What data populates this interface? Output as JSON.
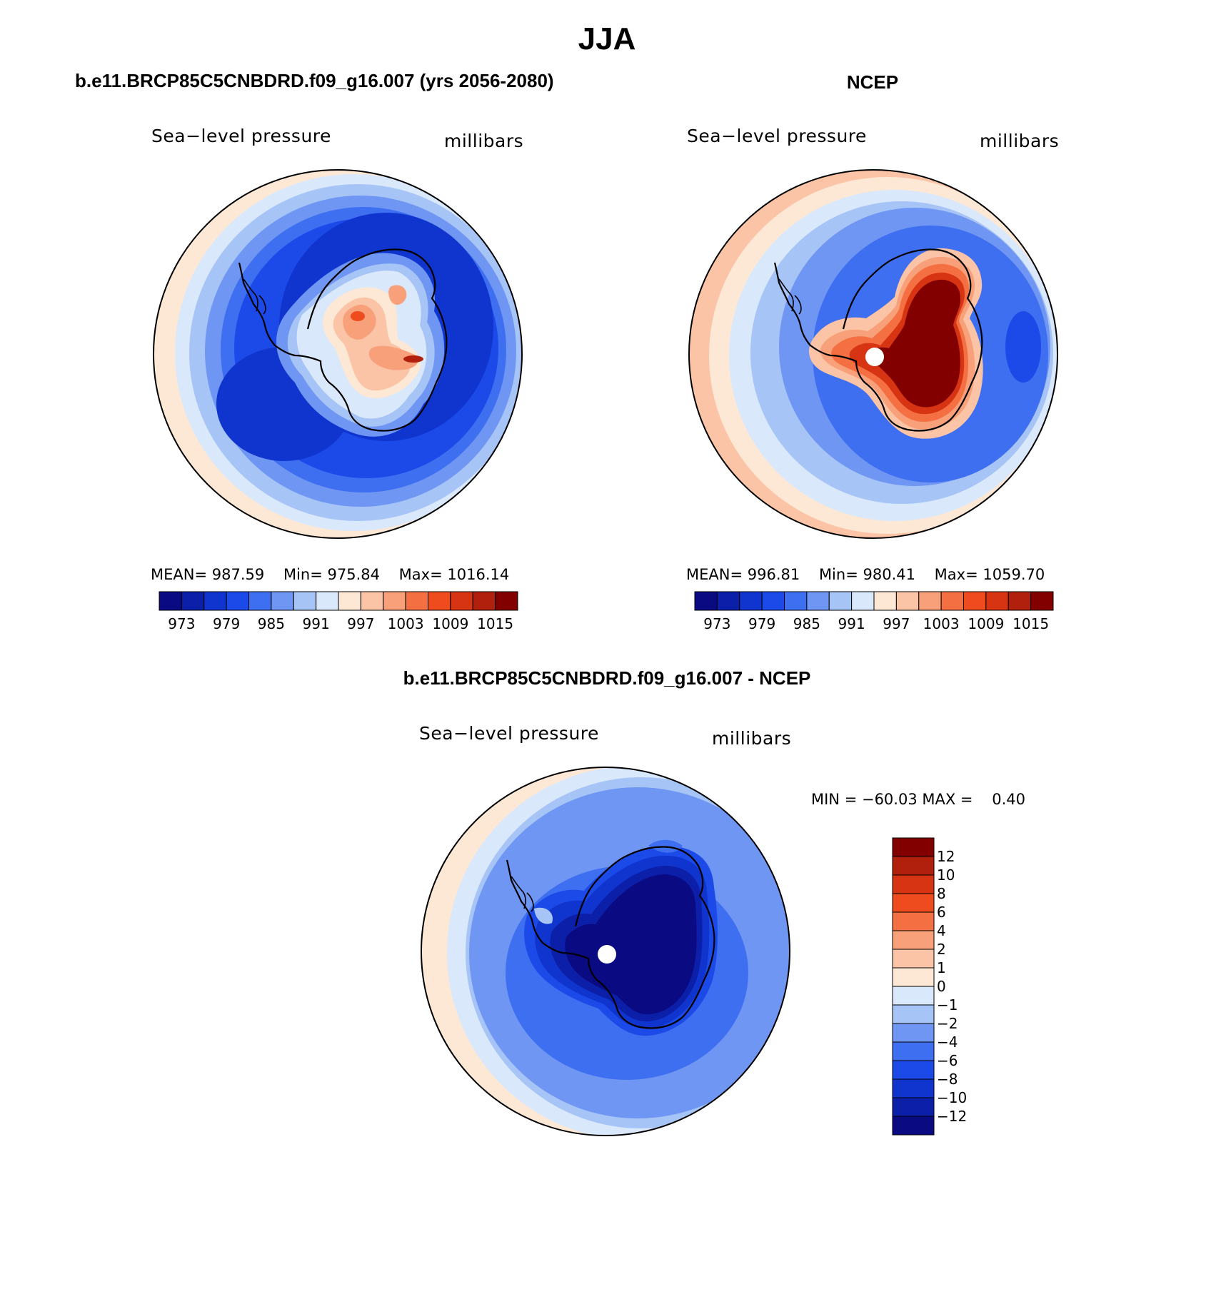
{
  "figure": {
    "season": "JJA",
    "panel_left": {
      "title": "b.e11.BRCP85C5CNBDRD.f09_g16.007 (yrs 2056-2080)",
      "variable": "Sea−level pressure",
      "units": "millibars",
      "mean_label": "MEAN=",
      "mean": "987.59",
      "min_label": "Min=",
      "min": "975.84",
      "max_label": "Max=",
      "max": "1016.14"
    },
    "panel_right": {
      "title": "NCEP",
      "variable": "Sea−level pressure",
      "units": "millibars",
      "mean_label": "MEAN=",
      "mean": "996.81",
      "min_label": "Min=",
      "min": "980.41",
      "max_label": "Max=",
      "max": "1059.70"
    },
    "panel_diff": {
      "title": "b.e11.BRCP85C5CNBDRD.f09_g16.007 - NCEP",
      "variable": "Sea−level pressure",
      "units": "millibars",
      "minmax_text": "MIN = −60.03 MAX =",
      "max_value": "0.40"
    }
  },
  "colorbar_abs": {
    "colors": [
      "#0a0a82",
      "#0c1fa8",
      "#1035cf",
      "#1c4ae8",
      "#3e6ff0",
      "#6f96f2",
      "#a7c4f7",
      "#d9e8fb",
      "#fde8d6",
      "#fbc4a6",
      "#f7a07a",
      "#f46f42",
      "#ee4c1e",
      "#d73414",
      "#b0200c",
      "#820000"
    ],
    "tick_labels": [
      "973",
      "979",
      "985",
      "991",
      "997",
      "1003",
      "1009",
      "1015"
    ]
  },
  "colorbar_diff": {
    "colors_top_to_bottom": [
      "#820000",
      "#b0200c",
      "#d73414",
      "#ee4c1e",
      "#f46f42",
      "#f7a07a",
      "#fbc4a6",
      "#fde8d6",
      "#d9e8fb",
      "#a7c4f7",
      "#6f96f2",
      "#3e6ff0",
      "#1c4ae8",
      "#1035cf",
      "#0c1fa8",
      "#0a0a82"
    ],
    "tick_labels": [
      "12",
      "10",
      "8",
      "6",
      "4",
      "2",
      "1",
      "0",
      "−1",
      "−2",
      "−4",
      "−6",
      "−8",
      "−10",
      "−12"
    ]
  }
}
